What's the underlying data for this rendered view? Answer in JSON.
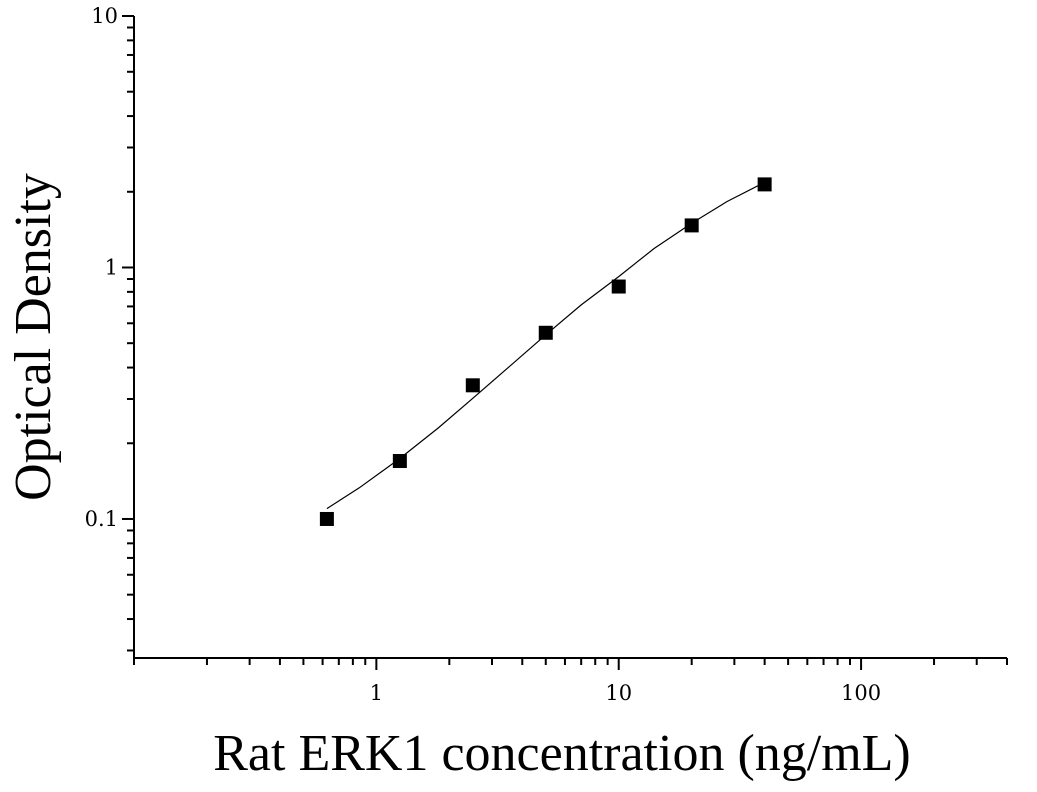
{
  "chart_data": {
    "type": "scatter",
    "xlabel": "Rat ERK1 concentration (ng/mL)",
    "ylabel": "Optical Density",
    "x_scale": "log",
    "y_scale": "log",
    "xlim": [
      0.1,
      400
    ],
    "ylim": [
      0.028,
      10
    ],
    "x_ticks": [
      {
        "value": 1,
        "label": "1"
      },
      {
        "value": 10,
        "label": "10"
      },
      {
        "value": 100,
        "label": "100"
      }
    ],
    "y_ticks": [
      {
        "value": 0.1,
        "label": "0.1"
      },
      {
        "value": 1,
        "label": "1"
      },
      {
        "value": 10,
        "label": "10"
      }
    ],
    "grid": false,
    "legend": "none",
    "series": [
      {
        "marker": "square",
        "color": "#000000",
        "x": [
          0.625,
          1.25,
          2.5,
          5,
          10,
          20,
          40
        ],
        "y": [
          0.1,
          0.17,
          0.34,
          0.55,
          0.84,
          1.47,
          2.14
        ]
      }
    ],
    "fit_curve": {
      "color": "#000000",
      "x": [
        0.625,
        0.85,
        1.25,
        1.8,
        2.5,
        3.5,
        5,
        7,
        10,
        14,
        20,
        28,
        40
      ],
      "y": [
        0.11,
        0.133,
        0.174,
        0.23,
        0.302,
        0.4,
        0.54,
        0.71,
        0.92,
        1.19,
        1.5,
        1.83,
        2.18
      ]
    }
  }
}
